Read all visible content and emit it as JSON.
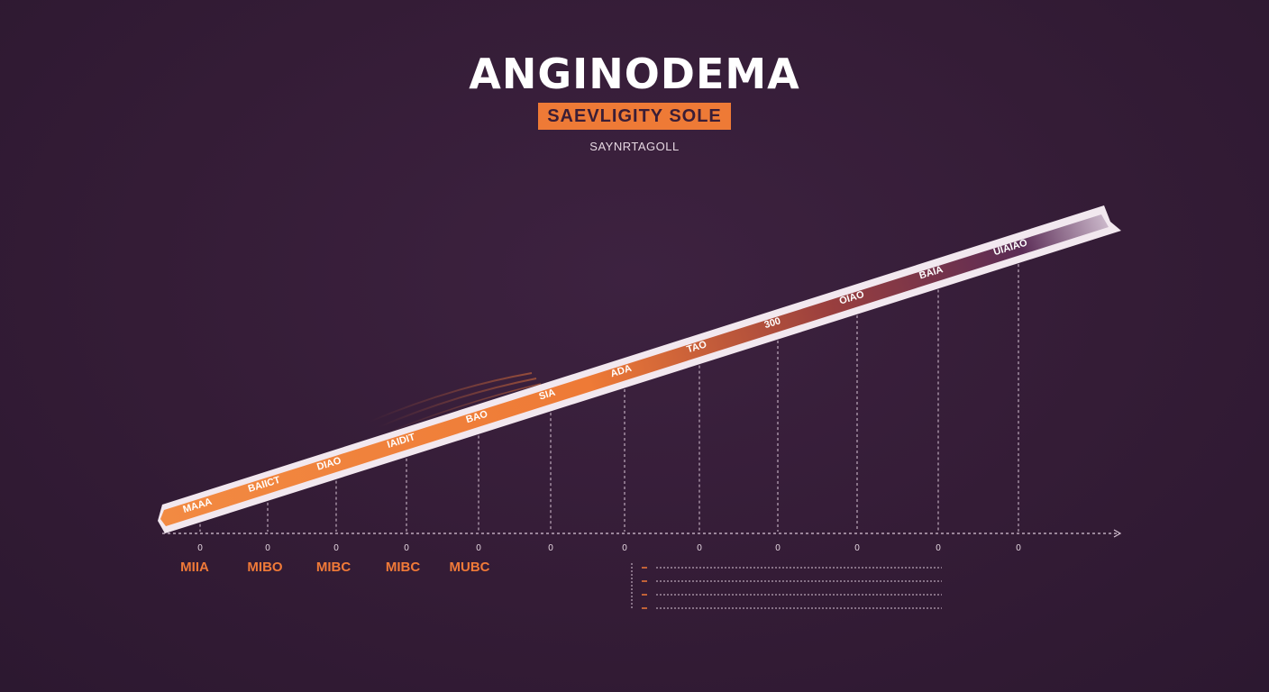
{
  "title": "ANGINODEMA",
  "subtitle": "SAEVLIGITY SOLE",
  "caption": "SAYNRTAGOLL",
  "band_labels": [
    "MAAA",
    "BAIICT",
    "DIAO",
    "IAIDIT",
    "BAO",
    "SIA",
    "ADA",
    "TAO",
    "300",
    "OIAO",
    "BAIA",
    "UIAIAO"
  ],
  "axis_ticks": [
    "0",
    "0",
    "0",
    "0",
    "0",
    "0",
    "0",
    "0",
    "0",
    "0",
    "0",
    "0"
  ],
  "category_labels": [
    "MIIA",
    "MIBO",
    "MIBC",
    "MIBC",
    "MUBC"
  ],
  "colors": {
    "background": "#351d36",
    "accent": "#ee7a36",
    "band_end": "#5a2b55",
    "line": "#d9c6d6",
    "label_orange": "#f07a38"
  },
  "legend_rows": 4
}
